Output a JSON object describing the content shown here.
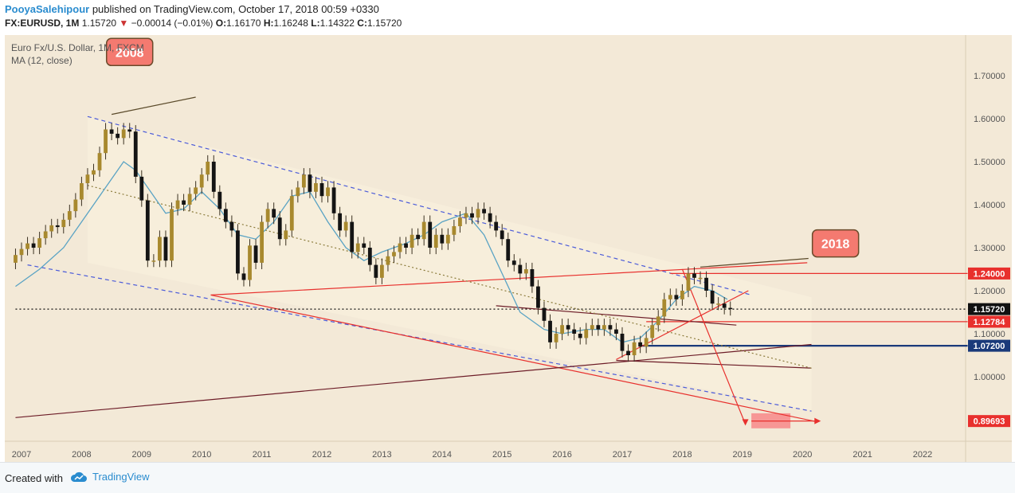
{
  "header": {
    "author": "PooyaSalehipour",
    "published": " published on TradingView.com, October 17, 2018 00:59 +0330",
    "symbol": "FX:EURUSD, 1M",
    "last": "1.15720",
    "change_arrow": "▼",
    "change": "−0.00014 (−0.01%)",
    "o_label": "O:",
    "o_value": "1.16170",
    "h_label": "H:",
    "h_value": "1.16248",
    "l_label": "L:",
    "l_value": "1.14322",
    "c_label": "C:",
    "c_value": "1.15720"
  },
  "legend": {
    "title": "Euro Fx/U.S. Dollar, 1M, FXCM",
    "indicator": "MA (12, close)"
  },
  "footer": {
    "created_with": "Created with",
    "brand": "TradingView"
  },
  "colors": {
    "background": "#f3e9d7",
    "up_candle": "#a8892e",
    "down_candle": "#141414",
    "ma_line": "#5aa3c4",
    "channel": "#4b5bd9",
    "trend_red": "#e8302d",
    "navy": "#1a3a7a",
    "callout": "#f47a70",
    "maroon": "#6d1d28"
  },
  "chart_data": {
    "type": "candlestick",
    "title": "Euro Fx/U.S. Dollar, 1M, FXCM",
    "x_ticks": [
      "2007",
      "2008",
      "2009",
      "2010",
      "2011",
      "2012",
      "2013",
      "2014",
      "2015",
      "2016",
      "2017",
      "2018",
      "2019",
      "2020",
      "2021",
      "2022"
    ],
    "y_ticks": [
      "1.70000",
      "1.60000",
      "1.50000",
      "1.40000",
      "1.30000",
      "1.20000",
      "1.10000",
      "1.00000"
    ],
    "ylim": [
      0.81,
      1.81
    ],
    "price_labels": [
      {
        "label": "1.24000",
        "value": 1.24,
        "color": "#e8302d"
      },
      {
        "label": "1.15720",
        "value": 1.1572,
        "color": "#111111"
      },
      {
        "label": "1.12784",
        "value": 1.12784,
        "color": "#e8302d"
      },
      {
        "label": "1.07200",
        "value": 1.072,
        "color": "#1a3a7a"
      },
      {
        "label": "0.89693",
        "value": 0.89693,
        "color": "#e8302d"
      }
    ],
    "annotations": [
      {
        "text": "2008",
        "year": 2008.8,
        "price": 1.755
      },
      {
        "text": "2018",
        "year": 2020.55,
        "price": 1.31
      }
    ],
    "lines": [
      {
        "name": "channel-upper",
        "color": "#4b5bd9",
        "dash": true,
        "points": [
          [
            2008.1,
            1.605
          ],
          [
            2019.15,
            1.19
          ]
        ]
      },
      {
        "name": "channel-lower",
        "color": "#4b5bd9",
        "dash": true,
        "points": [
          [
            2007.1,
            1.26
          ],
          [
            2020.15,
            0.92
          ]
        ]
      },
      {
        "name": "support-red",
        "color": "#e8302d",
        "points": [
          [
            2010.15,
            1.19
          ],
          [
            2020.25,
            0.895
          ]
        ]
      },
      {
        "name": "rising-red",
        "color": "#e8302d",
        "points": [
          [
            2010.15,
            1.19
          ],
          [
            2020.08,
            1.265
          ]
        ]
      },
      {
        "name": "target-red",
        "color": "#e8302d",
        "points": [
          [
            2019.15,
            0.897
          ],
          [
            2020.2,
            0.897
          ]
        ]
      },
      {
        "name": "level-124",
        "color": "#e8302d",
        "points": [
          [
            2017.8,
            1.24
          ],
          [
            2022.75,
            1.24
          ]
        ]
      },
      {
        "name": "level-1128",
        "color": "#e8302d",
        "points": [
          [
            2017.4,
            1.128
          ],
          [
            2022.75,
            1.128
          ]
        ]
      },
      {
        "name": "level-1072",
        "color": "#1a3a7a",
        "thick": true,
        "points": [
          [
            2017.3,
            1.072
          ],
          [
            2022.75,
            1.072
          ]
        ]
      },
      {
        "name": "current-price",
        "color": "#111111",
        "dotted": true,
        "points": [
          [
            2006.9,
            1.1572
          ],
          [
            2022.75,
            1.1572
          ]
        ]
      },
      {
        "name": "long-support",
        "color": "#6d1d28",
        "points": [
          [
            2006.9,
            0.905
          ],
          [
            2020.15,
            1.075
          ]
        ]
      },
      {
        "name": "flat-resist",
        "color": "#6d1d28",
        "points": [
          [
            2014.9,
            1.165
          ],
          [
            2018.9,
            1.12
          ]
        ]
      },
      {
        "name": "mid-trend",
        "color": "#6d1d28",
        "points": [
          [
            2016.9,
            1.038
          ],
          [
            2020.15,
            1.02
          ]
        ]
      },
      {
        "name": "mid-dotted",
        "color": "#8a7a3a",
        "dotted": true,
        "points": [
          [
            2008.1,
            1.445
          ],
          [
            2020.15,
            1.02
          ]
        ]
      },
      {
        "name": "rise-2017",
        "color": "#e8302d",
        "points": [
          [
            2016.9,
            1.04
          ],
          [
            2019.1,
            1.2
          ]
        ]
      },
      {
        "name": "drop-arrow",
        "color": "#e8302d",
        "points": [
          [
            2018.0,
            1.25
          ],
          [
            2019.05,
            0.89
          ]
        ]
      },
      {
        "name": "callout-2008-leader",
        "color": "#5a4a2a",
        "points": [
          [
            2008.5,
            1.61
          ],
          [
            2009.9,
            1.65
          ]
        ]
      },
      {
        "name": "callout-2018-leader",
        "color": "#5a4a2a",
        "points": [
          [
            2018.3,
            1.255
          ],
          [
            2020.1,
            1.275
          ]
        ]
      }
    ],
    "target_box": {
      "x": [
        2019.15,
        2019.8
      ],
      "y": [
        0.88,
        0.915
      ]
    },
    "ma_points": [
      [
        2006.9,
        1.21
      ],
      [
        2007.3,
        1.25
      ],
      [
        2007.7,
        1.3
      ],
      [
        2008.0,
        1.36
      ],
      [
        2008.4,
        1.44
      ],
      [
        2008.7,
        1.5
      ],
      [
        2008.9,
        1.48
      ],
      [
        2009.1,
        1.44
      ],
      [
        2009.4,
        1.38
      ],
      [
        2009.7,
        1.39
      ],
      [
        2010.0,
        1.43
      ],
      [
        2010.3,
        1.39
      ],
      [
        2010.6,
        1.33
      ],
      [
        2010.9,
        1.32
      ],
      [
        2011.2,
        1.36
      ],
      [
        2011.5,
        1.42
      ],
      [
        2011.8,
        1.43
      ],
      [
        2012.1,
        1.36
      ],
      [
        2012.4,
        1.3
      ],
      [
        2012.7,
        1.27
      ],
      [
        2013.0,
        1.29
      ],
      [
        2013.4,
        1.31
      ],
      [
        2013.7,
        1.33
      ],
      [
        2014.0,
        1.36
      ],
      [
        2014.4,
        1.38
      ],
      [
        2014.7,
        1.33
      ],
      [
        2015.0,
        1.24
      ],
      [
        2015.3,
        1.15
      ],
      [
        2015.7,
        1.11
      ],
      [
        2016.0,
        1.1
      ],
      [
        2016.4,
        1.11
      ],
      [
        2016.7,
        1.11
      ],
      [
        2017.0,
        1.08
      ],
      [
        2017.3,
        1.09
      ],
      [
        2017.6,
        1.13
      ],
      [
        2017.9,
        1.18
      ],
      [
        2018.2,
        1.21
      ],
      [
        2018.5,
        1.2
      ],
      [
        2018.75,
        1.18
      ]
    ],
    "candles": [
      [
        2006.9,
        1.265,
        1.283
      ],
      [
        2007.0,
        1.283,
        1.297
      ],
      [
        2007.1,
        1.297,
        1.31
      ],
      [
        2007.2,
        1.31,
        1.3
      ],
      [
        2007.3,
        1.3,
        1.322
      ],
      [
        2007.4,
        1.322,
        1.338
      ],
      [
        2007.5,
        1.338,
        1.352
      ],
      [
        2007.6,
        1.352,
        1.348
      ],
      [
        2007.7,
        1.348,
        1.365
      ],
      [
        2007.8,
        1.365,
        1.385
      ],
      [
        2007.9,
        1.385,
        1.412
      ],
      [
        2008.0,
        1.412,
        1.45
      ],
      [
        2008.1,
        1.45,
        1.47
      ],
      [
        2008.2,
        1.47,
        1.48
      ],
      [
        2008.3,
        1.48,
        1.52
      ],
      [
        2008.4,
        1.52,
        1.575
      ],
      [
        2008.5,
        1.575,
        1.565
      ],
      [
        2008.6,
        1.565,
        1.555
      ],
      [
        2008.7,
        1.555,
        1.575
      ],
      [
        2008.8,
        1.575,
        1.57
      ],
      [
        2008.9,
        1.57,
        1.465
      ],
      [
        2009.0,
        1.465,
        1.41
      ],
      [
        2009.1,
        1.41,
        1.27
      ],
      [
        2009.2,
        1.27,
        1.27
      ],
      [
        2009.3,
        1.27,
        1.325
      ],
      [
        2009.4,
        1.325,
        1.27
      ],
      [
        2009.5,
        1.27,
        1.39
      ],
      [
        2009.6,
        1.39,
        1.41
      ],
      [
        2009.7,
        1.41,
        1.4
      ],
      [
        2009.8,
        1.4,
        1.425
      ],
      [
        2009.9,
        1.425,
        1.44
      ],
      [
        2010.0,
        1.44,
        1.47
      ],
      [
        2010.1,
        1.47,
        1.5
      ],
      [
        2010.2,
        1.5,
        1.43
      ],
      [
        2010.3,
        1.43,
        1.39
      ],
      [
        2010.4,
        1.39,
        1.36
      ],
      [
        2010.5,
        1.36,
        1.34
      ],
      [
        2010.6,
        1.34,
        1.24
      ],
      [
        2010.7,
        1.24,
        1.225
      ],
      [
        2010.8,
        1.225,
        1.305
      ],
      [
        2010.9,
        1.305,
        1.265
      ],
      [
        2011.0,
        1.265,
        1.36
      ],
      [
        2011.1,
        1.36,
        1.39
      ],
      [
        2011.2,
        1.39,
        1.37
      ],
      [
        2011.3,
        1.37,
        1.32
      ],
      [
        2011.4,
        1.32,
        1.34
      ],
      [
        2011.5,
        1.34,
        1.42
      ],
      [
        2011.6,
        1.42,
        1.44
      ],
      [
        2011.7,
        1.44,
        1.47
      ],
      [
        2011.8,
        1.47,
        1.43
      ],
      [
        2011.9,
        1.43,
        1.45
      ],
      [
        2012.0,
        1.45,
        1.42
      ],
      [
        2012.1,
        1.42,
        1.44
      ],
      [
        2012.2,
        1.44,
        1.38
      ],
      [
        2012.3,
        1.38,
        1.34
      ],
      [
        2012.4,
        1.34,
        1.36
      ],
      [
        2012.5,
        1.36,
        1.29
      ],
      [
        2012.6,
        1.29,
        1.31
      ],
      [
        2012.7,
        1.31,
        1.3
      ],
      [
        2012.8,
        1.3,
        1.26
      ],
      [
        2012.9,
        1.26,
        1.23
      ],
      [
        2013.0,
        1.23,
        1.26
      ],
      [
        2013.1,
        1.26,
        1.28
      ],
      [
        2013.2,
        1.28,
        1.29
      ],
      [
        2013.3,
        1.29,
        1.31
      ],
      [
        2013.4,
        1.31,
        1.3
      ],
      [
        2013.5,
        1.3,
        1.33
      ],
      [
        2013.6,
        1.33,
        1.32
      ],
      [
        2013.7,
        1.32,
        1.36
      ],
      [
        2013.8,
        1.36,
        1.3
      ],
      [
        2013.9,
        1.3,
        1.33
      ],
      [
        2014.0,
        1.33,
        1.31
      ],
      [
        2014.1,
        1.31,
        1.33
      ],
      [
        2014.2,
        1.33,
        1.35
      ],
      [
        2014.3,
        1.35,
        1.37
      ],
      [
        2014.4,
        1.37,
        1.38
      ],
      [
        2014.5,
        1.38,
        1.37
      ],
      [
        2014.6,
        1.37,
        1.39
      ],
      [
        2014.7,
        1.39,
        1.38
      ],
      [
        2014.8,
        1.38,
        1.36
      ],
      [
        2014.9,
        1.36,
        1.34
      ],
      [
        2015.0,
        1.34,
        1.32
      ],
      [
        2015.1,
        1.32,
        1.27
      ],
      [
        2015.2,
        1.27,
        1.26
      ],
      [
        2015.3,
        1.26,
        1.24
      ],
      [
        2015.4,
        1.24,
        1.25
      ],
      [
        2015.5,
        1.25,
        1.21
      ],
      [
        2015.6,
        1.21,
        1.16
      ],
      [
        2015.7,
        1.16,
        1.13
      ],
      [
        2015.8,
        1.13,
        1.08
      ],
      [
        2015.9,
        1.08,
        1.1
      ],
      [
        2016.0,
        1.1,
        1.12
      ],
      [
        2016.1,
        1.12,
        1.11
      ],
      [
        2016.2,
        1.11,
        1.1
      ],
      [
        2016.3,
        1.1,
        1.09
      ],
      [
        2016.4,
        1.09,
        1.11
      ],
      [
        2016.5,
        1.11,
        1.12
      ],
      [
        2016.6,
        1.12,
        1.11
      ],
      [
        2016.7,
        1.11,
        1.12
      ],
      [
        2016.8,
        1.12,
        1.11
      ],
      [
        2016.9,
        1.11,
        1.1
      ],
      [
        2017.0,
        1.1,
        1.06
      ],
      [
        2017.1,
        1.06,
        1.05
      ],
      [
        2017.2,
        1.05,
        1.08
      ],
      [
        2017.3,
        1.08,
        1.07
      ],
      [
        2017.4,
        1.07,
        1.09
      ],
      [
        2017.5,
        1.09,
        1.12
      ],
      [
        2017.6,
        1.12,
        1.14
      ],
      [
        2017.7,
        1.14,
        1.18
      ],
      [
        2017.8,
        1.18,
        1.19
      ],
      [
        2017.9,
        1.19,
        1.18
      ],
      [
        2018.0,
        1.18,
        1.2
      ],
      [
        2018.1,
        1.2,
        1.24
      ],
      [
        2018.2,
        1.24,
        1.23
      ],
      [
        2018.3,
        1.23,
        1.23
      ],
      [
        2018.4,
        1.23,
        1.2
      ],
      [
        2018.5,
        1.2,
        1.17
      ],
      [
        2018.6,
        1.17,
        1.17
      ],
      [
        2018.7,
        1.17,
        1.16
      ],
      [
        2018.8,
        1.16,
        1.1572
      ]
    ]
  }
}
